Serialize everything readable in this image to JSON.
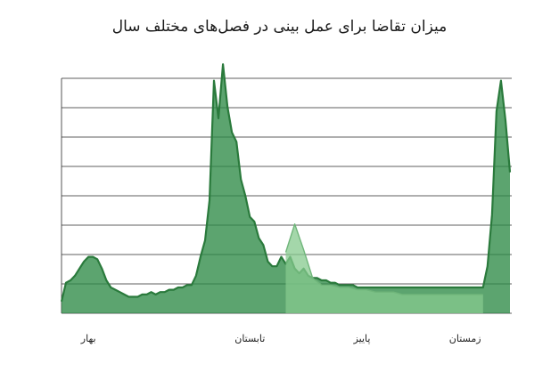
{
  "chart_data": {
    "type": "area",
    "title": "میزان تقاضا برای عمل بینی در فصل‌های مختلف سال",
    "xlabel": "",
    "ylabel": "",
    "xlim": [
      0,
      100
    ],
    "ylim": [
      0,
      100
    ],
    "grid": true,
    "legend": "none",
    "x_ticks": [
      {
        "x": 6,
        "label": "بهار"
      },
      {
        "x": 42,
        "label": "تابستان"
      },
      {
        "x": 67,
        "label": "پاییز"
      },
      {
        "x": 90,
        "label": "زمستان"
      }
    ],
    "series": [
      {
        "color": "#2e8b47",
        "x": [
          0,
          1,
          2,
          3,
          4,
          5,
          6,
          7,
          8,
          9,
          10,
          11,
          12,
          13,
          14,
          15,
          16,
          17,
          18,
          19,
          20,
          21,
          22,
          23,
          24,
          25,
          26,
          27,
          28,
          29,
          30,
          31,
          32,
          33,
          34,
          35,
          36,
          37,
          38,
          39,
          40,
          41,
          42,
          43,
          44,
          45,
          46,
          47,
          48,
          49,
          50,
          51,
          52,
          53,
          54,
          55,
          56,
          57,
          58,
          59,
          60,
          61,
          62,
          63,
          64,
          65,
          66,
          67,
          68,
          69,
          70,
          71,
          72,
          73,
          74,
          75,
          76,
          77,
          78,
          79,
          80,
          81,
          82,
          83,
          84,
          85,
          86,
          87,
          88,
          89,
          90,
          91,
          92,
          93,
          94,
          95,
          96,
          97,
          98,
          99,
          100
        ],
        "values": [
          5,
          13,
          14,
          16,
          19,
          22,
          24,
          24,
          23,
          19,
          14,
          11,
          10,
          9,
          8,
          7,
          7,
          7,
          8,
          8,
          9,
          8,
          9,
          9,
          10,
          10,
          11,
          11,
          12,
          12,
          16,
          24,
          31,
          48,
          99,
          83,
          106,
          88,
          77,
          73,
          57,
          50,
          41,
          39,
          32,
          29,
          22,
          20,
          20,
          24,
          21,
          24,
          19,
          17,
          19,
          16,
          15,
          15,
          14,
          14,
          13,
          13,
          12,
          12,
          12,
          12,
          11,
          11,
          11,
          11,
          11,
          11,
          11,
          11,
          11,
          11,
          11,
          11,
          11,
          11,
          11,
          11,
          11,
          11,
          11,
          11,
          11,
          11,
          11,
          11,
          11,
          11,
          11,
          11,
          11,
          20,
          42,
          86,
          99,
          82,
          60
        ]
      },
      {
        "color": "#86c98e",
        "x": [
          50,
          52,
          54,
          56,
          58,
          60,
          62,
          64,
          66,
          68,
          70,
          72,
          74,
          76,
          78,
          80,
          82,
          84,
          86,
          88,
          90,
          92,
          94
        ],
        "values": [
          26,
          38,
          27,
          15,
          12,
          12,
          11,
          11,
          10,
          10,
          9,
          9,
          9,
          8,
          8,
          8,
          8,
          8,
          8,
          8,
          8,
          8,
          8
        ]
      }
    ]
  }
}
